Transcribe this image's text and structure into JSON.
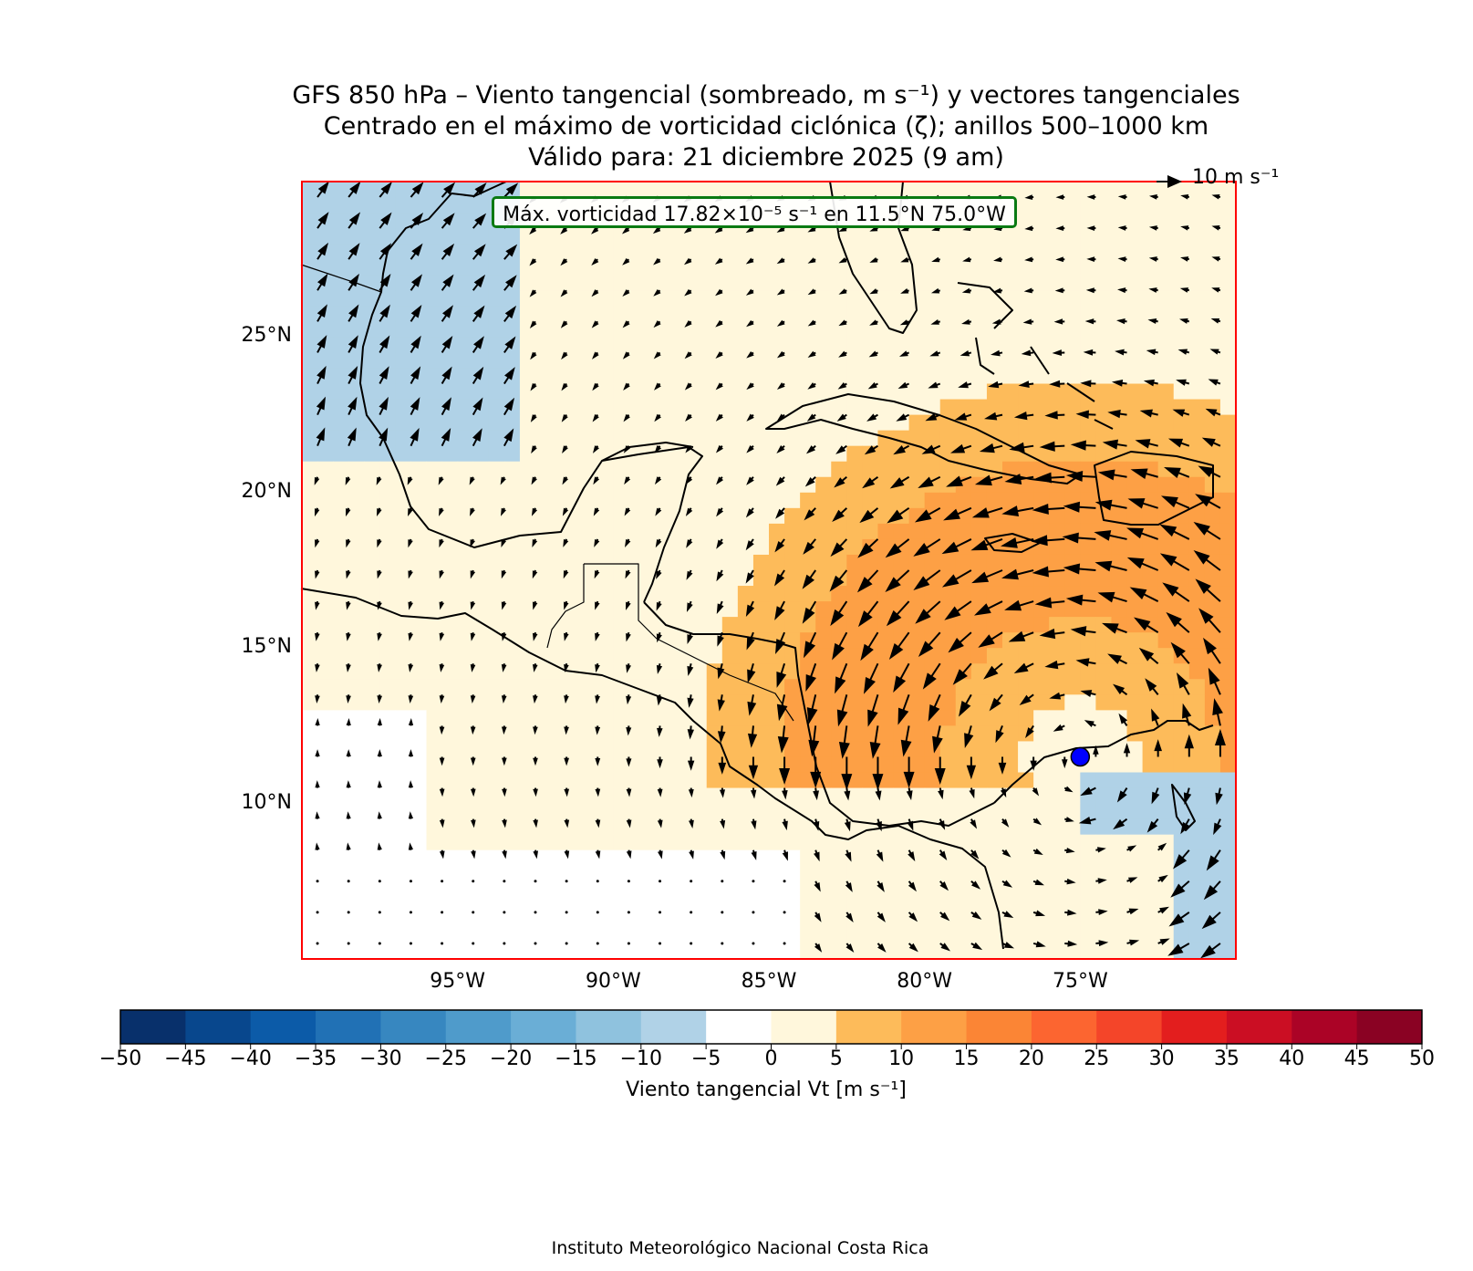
{
  "title": {
    "line1": "GFS 850 hPa – Viento tangencial (sombreado, m s⁻¹) y vectores tangenciales",
    "line2": "Centrado en el máximo de vorticidad ciclónica (ζ); anillos 500–1000 km",
    "line3": "Válido para: 21 diciembre 2025 (9 am)"
  },
  "reference_vector": {
    "label": "10 m s⁻¹",
    "magnitude": 10
  },
  "max_vorticity_box": "Máx. vorticidad 17.82×10⁻⁵ s⁻¹ en 11.5°N 75.0°W",
  "center_marker": {
    "lat": 11.5,
    "lon": -75.0,
    "color": "#0000ff"
  },
  "map": {
    "extent": {
      "lon_min": -100,
      "lon_max": -70,
      "lat_min": 5,
      "lat_max": 30
    },
    "lat_ticks": [
      {
        "value": 25,
        "label": "25°N"
      },
      {
        "value": 20,
        "label": "20°N"
      },
      {
        "value": 15,
        "label": "15°N"
      },
      {
        "value": 10,
        "label": "10°N"
      }
    ],
    "lon_ticks": [
      {
        "value": -95,
        "label": "95°W"
      },
      {
        "value": -90,
        "label": "90°W"
      },
      {
        "value": -85,
        "label": "85°W"
      },
      {
        "value": -80,
        "label": "80°W"
      },
      {
        "value": -75,
        "label": "75°W"
      }
    ],
    "frame_color": "#ff0000"
  },
  "colorbar": {
    "label": "Viento tangencial Vt [m s⁻¹]",
    "ticks": [
      "−50",
      "−45",
      "−40",
      "−35",
      "−30",
      "−25",
      "−20",
      "−15",
      "−10",
      "−5",
      "0",
      "5",
      "10",
      "15",
      "20",
      "25",
      "30",
      "35",
      "40",
      "45",
      "50"
    ],
    "colors": [
      "#08306b",
      "#08478d",
      "#0c5ba8",
      "#2171b5",
      "#3787c0",
      "#4f9bcb",
      "#6aaed6",
      "#8fc2de",
      "#b0d2e7",
      "#ffffff",
      "#fff7dc",
      "#fdbb5a",
      "#fda045",
      "#fb8535",
      "#fc6530",
      "#f44529",
      "#e31e1e",
      "#cb0e23",
      "#ab0326",
      "#8a0223"
    ]
  },
  "credit": "Instituto Meteorológico Nacional Costa Rica"
}
